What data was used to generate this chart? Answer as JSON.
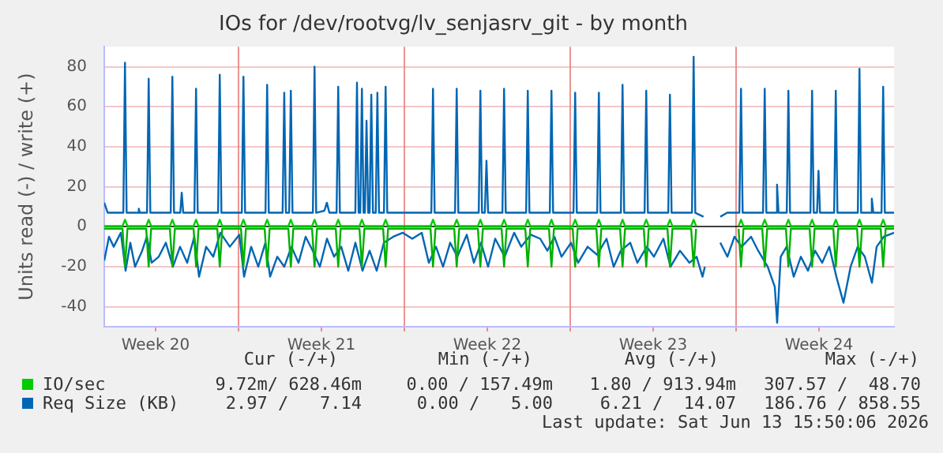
{
  "chart_data": {
    "type": "line",
    "title": "IOs for /dev/rootvg/lv_senjasrv_git - by month",
    "ylabel": "Units read (-) / write (+)",
    "x": [
      "2026-05-11T08:00",
      "2026-05-12T02:30",
      "2026-05-12T05:00",
      "2026-05-12T07:30",
      "2026-05-13T02:30",
      "2026-05-13T05:00",
      "2026-05-13T07:30",
      "2026-05-14T02:30",
      "2026-05-14T05:00",
      "2026-05-14T07:30",
      "2026-05-15T02:30",
      "2026-05-15T05:00",
      "2026-05-15T07:30",
      "2026-05-16T02:30",
      "2026-05-16T05:00",
      "2026-05-16T07:30",
      "2026-05-17T02:30",
      "2026-05-17T05:00",
      "2026-05-17T07:30",
      "2026-05-18T02:30",
      "2026-05-18T05:00",
      "2026-05-18T07:30",
      "2026-05-19T02:30",
      "2026-05-19T05:00",
      "2026-05-19T07:30",
      "2026-05-20T02:30",
      "2026-05-20T05:00",
      "2026-05-20T07:30",
      "2026-05-21T02:30",
      "2026-05-21T05:00",
      "2026-05-21T07:30",
      "2026-05-22T02:30",
      "2026-05-22T05:00",
      "2026-05-22T07:30",
      "2026-05-23T02:30",
      "2026-05-23T05:00",
      "2026-05-23T07:30",
      "2026-05-25T02:30",
      "2026-05-25T05:00",
      "2026-05-25T07:30",
      "2026-05-26T02:30",
      "2026-05-26T05:00",
      "2026-05-26T07:30",
      "2026-05-27T02:30",
      "2026-05-27T05:00",
      "2026-05-27T07:30",
      "2026-05-28T02:30",
      "2026-05-28T05:00",
      "2026-05-28T07:30",
      "2026-05-29T02:30",
      "2026-05-29T05:00",
      "2026-05-29T07:30",
      "2026-05-30T02:30",
      "2026-05-30T05:00",
      "2026-05-30T07:30",
      "2026-05-31T02:30",
      "2026-05-31T05:00",
      "2026-05-31T07:30",
      "2026-06-01T02:30",
      "2026-06-01T05:00",
      "2026-06-01T07:30",
      "2026-06-02T02:30",
      "2026-06-02T05:00",
      "2026-06-02T07:30",
      "2026-06-03T02:30",
      "2026-06-03T05:00",
      "2026-06-03T07:30",
      "2026-06-04T02:30",
      "2026-06-04T05:00",
      "2026-06-04T07:30",
      "2026-06-05T02:30",
      "2026-06-05T05:00",
      "2026-06-05T07:30",
      "2026-06-05T19:00",
      "2026-06-07T02:30",
      "2026-06-07T05:00",
      "2026-06-07T07:30",
      "2026-06-08T02:30",
      "2026-06-08T05:00",
      "2026-06-08T07:30",
      "2026-06-09T02:30",
      "2026-06-09T05:00",
      "2026-06-09T07:30",
      "2026-06-10T02:30",
      "2026-06-10T05:00",
      "2026-06-10T07:30",
      "2026-06-11T02:30",
      "2026-06-11T05:00",
      "2026-06-11T07:30",
      "2026-06-12T02:30",
      "2026-06-12T05:00",
      "2026-06-12T07:30",
      "2026-06-13T02:30",
      "2026-06-13T05:00",
      "2026-06-13T07:30",
      "2026-06-13T16:00"
    ],
    "series": [
      {
        "color": "#00b000",
        "values": [
          -1,
          -1,
          -20,
          -1,
          -1,
          -20,
          -1,
          -1,
          -20,
          -1,
          -1,
          -20,
          -1,
          -1,
          -20,
          -1,
          -1,
          -20,
          -1,
          -1,
          -20,
          -1,
          -1,
          -20,
          -1,
          -1,
          -20,
          -1,
          -1,
          -20,
          -1,
          -1,
          -20,
          -1,
          -1,
          -20,
          -1,
          -1,
          -20,
          -1,
          -1,
          -20,
          -1,
          -1,
          -20,
          -1,
          -1,
          -20,
          -1,
          -1,
          -20,
          -1,
          -1,
          -20,
          -1,
          -1,
          -20,
          -1,
          -1,
          -20,
          -1,
          -1,
          -20,
          -1,
          -1,
          -20,
          -1,
          -1,
          -20,
          -1,
          -1,
          -20,
          -1,
          null,
          -1,
          -20,
          -1,
          -1,
          -20,
          -1,
          -1,
          -20,
          -1,
          -1,
          -20,
          -1,
          -1,
          -20,
          -1,
          -1,
          -20,
          -1,
          -1,
          -20,
          -1,
          -1
        ]
      },
      {
        "name": "IO/sec",
        "color": "#00cc00",
        "values": [
          0.3,
          0.3,
          3.5,
          0.3,
          0.3,
          3.5,
          0.3,
          0.3,
          3.5,
          0.3,
          0.3,
          3.5,
          0.3,
          0.3,
          3.5,
          0.3,
          0.3,
          3.5,
          0.3,
          0.3,
          3.5,
          0.3,
          0.3,
          3.5,
          0.3,
          0.3,
          3.5,
          0.3,
          0.3,
          3.5,
          0.3,
          0.3,
          3.5,
          0.3,
          0.3,
          3.5,
          0.3,
          0.3,
          3.5,
          0.3,
          0.3,
          3.5,
          0.3,
          0.3,
          3.5,
          0.3,
          0.3,
          3.5,
          0.3,
          0.3,
          3.5,
          0.3,
          0.3,
          3.5,
          0.3,
          0.3,
          3.5,
          0.3,
          0.3,
          3.5,
          0.3,
          0.3,
          3.5,
          0.3,
          0.3,
          3.5,
          0.3,
          0.3,
          3.5,
          0.3,
          0.3,
          3.5,
          0.3,
          null,
          0.3,
          3.5,
          0.3,
          0.3,
          3.5,
          0.3,
          0.3,
          3.5,
          0.3,
          0.3,
          3.5,
          0.3,
          0.3,
          3.5,
          0.3,
          0.3,
          3.5,
          0.3,
          0.3,
          3.5,
          0.3,
          0.3
        ]
      },
      {
        "color": "#0066b3",
        "x": [
          "2026-05-11T08:00",
          "2026-05-11T12:48",
          "2026-05-11T17:36",
          "2026-05-12T00:48",
          "2026-05-12T05:36",
          "2026-05-12T10:24",
          "2026-05-12T15:12",
          "2026-05-12T22:24",
          "2026-05-13T03:12",
          "2026-05-13T08:00",
          "2026-05-13T15:12",
          "2026-05-13T22:24",
          "2026-05-14T05:36",
          "2026-05-14T12:48",
          "2026-05-14T20:00",
          "2026-05-15T03:12",
          "2026-05-15T08:00",
          "2026-05-15T15:12",
          "2026-05-15T22:24",
          "2026-05-16T05:36",
          "2026-05-16T15:12",
          "2026-05-17T00:48",
          "2026-05-17T05:36",
          "2026-05-17T12:48",
          "2026-05-17T20:00",
          "2026-05-18T03:12",
          "2026-05-18T08:00",
          "2026-05-18T15:12",
          "2026-05-18T22:24",
          "2026-05-19T05:36",
          "2026-05-19T12:48",
          "2026-05-19T20:00",
          "2026-05-20T03:12",
          "2026-05-20T10:24",
          "2026-05-20T17:36",
          "2026-05-21T00:48",
          "2026-05-21T08:00",
          "2026-05-21T15:12",
          "2026-05-21T22:24",
          "2026-05-22T05:36",
          "2026-05-22T12:48",
          "2026-05-22T20:00",
          "2026-05-23T03:12",
          "2026-05-23T12:48",
          "2026-05-23T22:24",
          "2026-05-24T08:00",
          "2026-05-24T17:36",
          "2026-05-25T00:48",
          "2026-05-25T08:00",
          "2026-05-25T15:12",
          "2026-05-25T22:24",
          "2026-05-26T05:36",
          "2026-05-26T15:12",
          "2026-05-26T22:24",
          "2026-05-27T05:36",
          "2026-05-27T12:48",
          "2026-05-27T20:00",
          "2026-05-28T05:36",
          "2026-05-28T15:12",
          "2026-05-28T22:24",
          "2026-05-29T08:00",
          "2026-05-29T17:36",
          "2026-05-30T00:48",
          "2026-05-30T08:00",
          "2026-05-30T15:12",
          "2026-05-31T00:48",
          "2026-05-31T08:00",
          "2026-05-31T17:36",
          "2026-06-01T03:12",
          "2026-06-01T12:48",
          "2026-06-01T20:00",
          "2026-06-02T03:12",
          "2026-06-02T12:48",
          "2026-06-02T20:00",
          "2026-06-03T05:36",
          "2026-06-03T12:48",
          "2026-06-03T22:24",
          "2026-06-04T05:36",
          "2026-06-04T15:12",
          "2026-06-05T00:48",
          "2026-06-05T08:00",
          "2026-06-05T14:00",
          "2026-06-05T16:24",
          "2026-06-05T18:48",
          "2026-06-06T08:00",
          "2026-06-06T15:12",
          "2026-06-06T22:24",
          "2026-06-07T05:36",
          "2026-06-07T15:12",
          "2026-06-07T22:24",
          "2026-06-08T08:00",
          "2026-06-08T15:12",
          "2026-06-08T17:36",
          "2026-06-08T21:12",
          "2026-06-09T03:12",
          "2026-06-09T10:24",
          "2026-06-09T17:36",
          "2026-06-10T00:48",
          "2026-06-10T08:00",
          "2026-06-10T15:12",
          "2026-06-10T22:24",
          "2026-06-11T05:36",
          "2026-06-11T12:48",
          "2026-06-11T20:00",
          "2026-06-12T03:12",
          "2026-06-12T10:24",
          "2026-06-12T17:36",
          "2026-06-12T22:24",
          "2026-06-13T05:36",
          "2026-06-13T16:00"
        ],
        "values": [
          -17,
          -5,
          -10,
          -3,
          -22,
          -8,
          -20,
          -12,
          -5,
          -18,
          -15,
          -8,
          -20,
          -10,
          -18,
          -5,
          -25,
          -10,
          -15,
          -3,
          -10,
          -4,
          -25,
          -10,
          -20,
          -8,
          -25,
          -15,
          -20,
          -10,
          -18,
          -5,
          -12,
          -20,
          -6,
          -15,
          -10,
          -22,
          -8,
          -22,
          -12,
          -22,
          -8,
          -5,
          -3,
          -6,
          -3,
          -18,
          -10,
          -20,
          -8,
          -15,
          -4,
          -18,
          -8,
          -20,
          -6,
          -15,
          -3,
          -10,
          -4,
          -6,
          -12,
          -5,
          -15,
          -8,
          -18,
          -10,
          -14,
          -6,
          -20,
          -12,
          -8,
          -18,
          -10,
          -15,
          -6,
          -20,
          -12,
          -18,
          -15,
          -25,
          -20,
          null,
          -8,
          -15,
          -5,
          -10,
          -5,
          -12,
          -20,
          -30,
          -48,
          -15,
          -10,
          -25,
          -15,
          -22,
          -12,
          -18,
          -10,
          -25,
          -38,
          -20,
          -10,
          -15,
          -28,
          -10,
          -5,
          -3
        ]
      },
      {
        "name": "Req Size (KB)",
        "color": "#0066b3",
        "x": [
          "2026-05-11T08:00",
          "2026-05-11T11:30",
          "2026-05-12T03:20",
          "2026-05-12T05:00",
          "2026-05-12T06:40",
          "2026-05-12T18:00",
          "2026-05-12T19:00",
          "2026-05-12T20:00",
          "2026-05-13T03:20",
          "2026-05-13T05:00",
          "2026-05-13T06:40",
          "2026-05-14T03:20",
          "2026-05-14T05:00",
          "2026-05-14T06:40",
          "2026-05-14T13:00",
          "2026-05-14T14:30",
          "2026-05-14T16:00",
          "2026-05-15T03:20",
          "2026-05-15T05:00",
          "2026-05-15T06:40",
          "2026-05-16T03:20",
          "2026-05-16T05:00",
          "2026-05-16T06:40",
          "2026-05-17T03:20",
          "2026-05-17T05:00",
          "2026-05-17T06:40",
          "2026-05-18T03:20",
          "2026-05-18T05:00",
          "2026-05-18T06:40",
          "2026-05-18T20:40",
          "2026-05-18T22:20",
          "2026-05-19T00:00",
          "2026-05-19T03:20",
          "2026-05-19T05:00",
          "2026-05-19T06:40",
          "2026-05-20T03:20",
          "2026-05-20T05:00",
          "2026-05-20T06:40",
          "2026-05-20T15:00",
          "2026-05-20T17:30",
          "2026-05-20T20:00",
          "2026-05-21T03:20",
          "2026-05-21T05:00",
          "2026-05-21T06:40",
          "2026-05-21T22:20",
          "2026-05-22T00:00",
          "2026-05-22T01:40",
          "2026-05-22T03:20",
          "2026-05-22T05:00",
          "2026-05-22T06:40",
          "2026-05-22T08:00",
          "2026-05-22T09:40",
          "2026-05-22T11:20",
          "2026-05-22T12:50",
          "2026-05-22T14:30",
          "2026-05-22T16:10",
          "2026-05-22T19:00",
          "2026-05-22T20:40",
          "2026-05-22T22:20",
          "2026-05-23T03:20",
          "2026-05-23T05:00",
          "2026-05-23T06:40",
          "2026-05-25T03:20",
          "2026-05-25T05:00",
          "2026-05-25T06:40",
          "2026-05-26T03:20",
          "2026-05-26T05:00",
          "2026-05-26T06:40",
          "2026-05-27T03:20",
          "2026-05-27T05:00",
          "2026-05-27T06:40",
          "2026-05-27T09:30",
          "2026-05-27T11:10",
          "2026-05-27T12:50",
          "2026-05-28T03:20",
          "2026-05-28T05:00",
          "2026-05-28T06:40",
          "2026-05-29T03:20",
          "2026-05-29T05:00",
          "2026-05-29T06:40",
          "2026-05-30T03:20",
          "2026-05-30T05:00",
          "2026-05-30T06:40",
          "2026-05-31T03:20",
          "2026-05-31T05:00",
          "2026-05-31T06:40",
          "2026-06-01T03:20",
          "2026-06-01T05:00",
          "2026-06-01T06:40",
          "2026-06-02T03:20",
          "2026-06-02T05:00",
          "2026-06-02T06:40",
          "2026-06-03T03:20",
          "2026-06-03T05:00",
          "2026-06-03T06:40",
          "2026-06-04T03:20",
          "2026-06-04T05:00",
          "2026-06-04T06:40",
          "2026-06-05T03:20",
          "2026-06-05T05:00",
          "2026-06-05T06:40",
          "2026-06-05T15:00",
          "2026-06-05T17:30",
          "2026-06-06T08:00",
          "2026-06-06T15:00",
          "2026-06-07T03:20",
          "2026-06-07T05:00",
          "2026-06-07T06:40",
          "2026-06-08T03:20",
          "2026-06-08T05:00",
          "2026-06-08T06:40",
          "2026-06-08T16:00",
          "2026-06-08T17:30",
          "2026-06-08T19:00",
          "2026-06-09T03:20",
          "2026-06-09T05:00",
          "2026-06-09T06:40",
          "2026-06-10T03:20",
          "2026-06-10T05:00",
          "2026-06-10T06:40",
          "2026-06-10T10:00",
          "2026-06-10T11:30",
          "2026-06-10T13:00",
          "2026-06-11T03:20",
          "2026-06-11T05:00",
          "2026-06-11T06:40",
          "2026-06-12T03:20",
          "2026-06-12T05:00",
          "2026-06-12T06:40",
          "2026-06-12T16:00",
          "2026-06-12T17:30",
          "2026-06-12T19:00",
          "2026-06-13T03:20",
          "2026-06-13T05:00",
          "2026-06-13T06:40",
          "2026-06-13T16:00"
        ],
        "values": [
          12,
          7,
          7,
          82,
          7,
          7,
          9,
          7,
          7,
          74,
          7,
          7,
          75,
          7,
          7,
          17,
          7,
          7,
          69,
          7,
          7,
          76,
          7,
          7,
          75,
          7,
          7,
          71,
          7,
          7,
          67,
          7,
          7,
          68,
          7,
          7,
          80,
          7,
          8,
          12,
          7,
          7,
          70,
          7,
          7,
          72,
          7,
          7,
          69,
          7,
          7,
          53,
          7,
          7,
          66,
          7,
          7,
          67,
          7,
          7,
          70,
          7,
          7,
          69,
          7,
          7,
          69,
          7,
          7,
          68,
          7,
          7,
          33,
          7,
          7,
          69,
          7,
          7,
          68,
          7,
          7,
          68,
          7,
          7,
          67,
          7,
          7,
          67,
          7,
          7,
          71,
          7,
          7,
          68,
          7,
          7,
          66,
          7,
          7,
          85,
          7,
          5,
          null,
          5,
          7,
          7,
          69,
          7,
          7,
          69,
          7,
          7,
          21,
          7,
          7,
          68,
          7,
          7,
          68,
          7,
          7,
          28,
          7,
          7,
          68,
          7,
          7,
          79,
          7,
          7,
          14,
          7,
          7,
          70,
          7,
          7
        ]
      }
    ],
    "xlim": [
      "2026-05-11T08:00",
      "2026-06-13T16:00"
    ],
    "xticks": [
      {
        "value": "2026-05-13T12:00",
        "label": "Week 20"
      },
      {
        "value": "2026-05-17T00:00",
        "label": null
      },
      {
        "value": "2026-05-20T12:00",
        "label": "Week 21"
      },
      {
        "value": "2026-05-24T00:00",
        "label": null
      },
      {
        "value": "2026-05-27T12:00",
        "label": "Week 22"
      },
      {
        "value": "2026-05-31T00:00",
        "label": null
      },
      {
        "value": "2026-06-03T12:00",
        "label": "Week 23"
      },
      {
        "value": "2026-06-07T00:00",
        "label": null
      },
      {
        "value": "2026-06-10T12:00",
        "label": "Week 24"
      }
    ],
    "ylim": [
      -50,
      90
    ],
    "yticks": [
      -40,
      -20,
      0,
      20,
      40,
      60,
      80
    ],
    "grid": true,
    "legend": "bottom",
    "annotations": [
      "Cur (-/+)",
      "Min (-/+)",
      "Avg (-/+)",
      "Max (-/+)",
      "9.72m/ 628.46m",
      "0.00 / 157.49m",
      "1.80 / 913.94m",
      "307.57 /  48.70",
      "2.97 /   7.14",
      "0.00 /   5.00",
      "6.21 /  14.07",
      "186.76 / 858.55",
      "Last update: Sat Jun 13 15:50:06 2026"
    ]
  }
}
